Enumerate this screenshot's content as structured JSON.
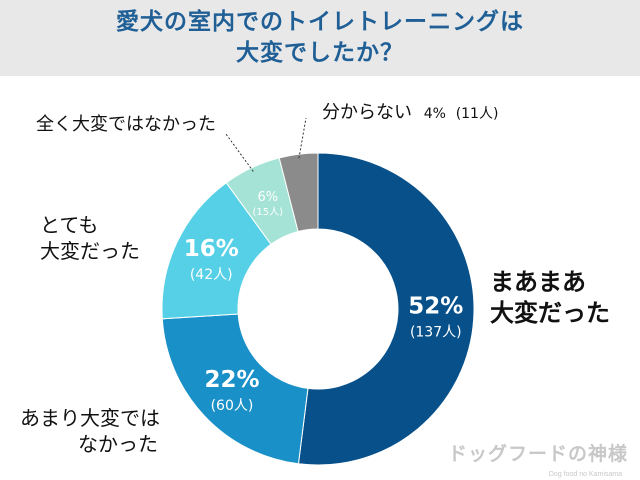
{
  "title_lines": [
    "愛犬の室内でのトイレトレーニングは",
    "大変でしたか？"
  ],
  "watermark": "ドッグフードの神様",
  "watermark_sub": "Dog food no Kamisama",
  "chart_data": {
    "type": "pie",
    "title": "愛犬の室内でのトイレトレーニングは大変でしたか？",
    "slices": [
      {
        "category_lines": [
          "まあまあ",
          "大変だった"
        ],
        "percent": "52%",
        "count": "(137人)",
        "value": 52,
        "color": "#07508a"
      },
      {
        "category_lines": [
          "あまり大変では",
          "なかった"
        ],
        "percent": "22%",
        "count": "(60人)",
        "value": 22,
        "color": "#1a90c8"
      },
      {
        "category_lines": [
          "とても",
          "大変だった"
        ],
        "percent": "16%",
        "count": "(42人)",
        "value": 16,
        "color": "#56d0e6"
      },
      {
        "category_lines": [
          "全く大変ではなかった"
        ],
        "percent": "6%",
        "count": "(15人)",
        "value": 6,
        "color": "#a4e3d5"
      },
      {
        "category_lines": [
          "分からない"
        ],
        "percent": "4%",
        "count": "(11人)",
        "value": 4,
        "color": "#8b8b8b"
      }
    ]
  }
}
